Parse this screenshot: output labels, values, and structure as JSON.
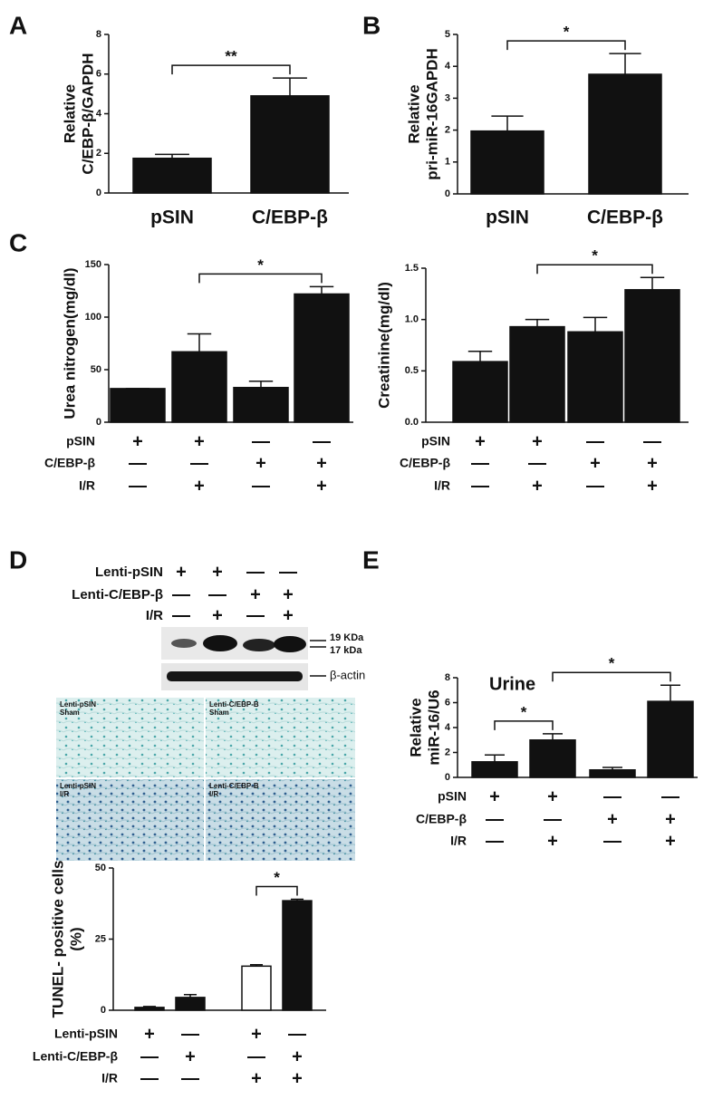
{
  "chart_data": [
    {
      "type": "bar",
      "panel": "A",
      "ylabel": [
        "Relative",
        "C/EBP-β/GAPDH"
      ],
      "categories": [
        "pSIN",
        "C/EBP-β"
      ],
      "values": [
        1.75,
        4.9
      ],
      "errors": [
        0.2,
        0.9
      ],
      "color": "#111111",
      "ylim": [
        0,
        8
      ],
      "yticks": [
        0,
        2,
        4,
        6,
        8
      ],
      "significance": [
        {
          "between": [
            0,
            1
          ],
          "label": "**"
        }
      ]
    },
    {
      "type": "bar",
      "panel": "B",
      "ylabel": [
        "Relative",
        "pri-miR-16GAPDH"
      ],
      "categories": [
        "pSIN",
        "C/EBP-β"
      ],
      "values": [
        1.97,
        3.75
      ],
      "errors": [
        0.47,
        0.65
      ],
      "color": "#111111",
      "ylim": [
        0,
        5
      ],
      "yticks": [
        0,
        1,
        2,
        3,
        4,
        5
      ],
      "significance": [
        {
          "between": [
            0,
            1
          ],
          "label": "*"
        }
      ]
    },
    {
      "type": "bar",
      "panel": "C",
      "ylabel": [
        "Urea nitrogen(mg/dl)"
      ],
      "values": [
        32,
        67,
        33,
        122
      ],
      "errors": [
        0,
        17,
        6,
        7
      ],
      "color": "#111111",
      "ylim": [
        0,
        150
      ],
      "yticks": [
        0,
        50,
        100,
        150
      ],
      "significance": [
        {
          "between": [
            1,
            3
          ],
          "label": "*"
        }
      ],
      "conditions": [
        {
          "label": "pSIN",
          "marks": [
            "+",
            "+",
            "—",
            "—"
          ]
        },
        {
          "label": "C/EBP-β",
          "marks": [
            "—",
            "—",
            "+",
            "+"
          ]
        },
        {
          "label": "I/R",
          "marks": [
            "—",
            "+",
            "—",
            "+"
          ]
        }
      ]
    },
    {
      "type": "bar",
      "ylabel": [
        "Creatinine(mg/dl)"
      ],
      "values": [
        0.59,
        0.93,
        0.88,
        1.29
      ],
      "errors": [
        0.1,
        0.07,
        0.14,
        0.12
      ],
      "color": "#111111",
      "ylim": [
        0,
        1.5
      ],
      "yticks": [
        {
          "value": 0,
          "label": "0.0"
        },
        0.5,
        {
          "value": 1,
          "label": "1.0"
        },
        1.5
      ],
      "significance": [
        {
          "between": [
            1,
            3
          ],
          "label": "*"
        }
      ],
      "conditions": [
        {
          "label": "pSIN",
          "marks": [
            "+",
            "+",
            "—",
            "—"
          ]
        },
        {
          "label": "C/EBP-β",
          "marks": [
            "—",
            "—",
            "+",
            "+"
          ]
        },
        {
          "label": "I/R",
          "marks": [
            "—",
            "+",
            "—",
            "+"
          ]
        }
      ]
    },
    {
      "type": "bar",
      "panel": "D",
      "ylabel": [
        "TUNEL- positive cells",
        "(%)"
      ],
      "values": [
        1,
        4.5,
        15.5,
        38.5
      ],
      "errors": [
        0.3,
        1,
        0.5,
        0.5
      ],
      "colors": [
        "#111111",
        "#111111",
        "#ffffff",
        "#111111"
      ],
      "ylim": [
        0,
        50
      ],
      "yticks": [
        0,
        25,
        50
      ],
      "significance": [
        {
          "between": [
            2,
            3
          ],
          "label": "*"
        }
      ],
      "conditions": [
        {
          "label": "Lenti-pSIN",
          "marks": [
            "+",
            "—",
            "+",
            "—"
          ]
        },
        {
          "label": "Lenti-C/EBP-β",
          "marks": [
            "—",
            "+",
            "—",
            "+"
          ]
        },
        {
          "label": "I/R",
          "marks": [
            "—",
            "—",
            "+",
            "+"
          ]
        }
      ]
    },
    {
      "type": "bar",
      "panel": "E",
      "annotation": "Urine",
      "ylabel": [
        "Relative",
        "miR-16/U6"
      ],
      "values": [
        1.25,
        3.0,
        0.6,
        6.1
      ],
      "errors": [
        0.55,
        0.5,
        0.2,
        1.3
      ],
      "color": "#111111",
      "ylim": [
        0,
        8
      ],
      "yticks": [
        0,
        2,
        4,
        6,
        8
      ],
      "significance": [
        {
          "between": [
            0,
            1
          ],
          "label": "*"
        },
        {
          "between": [
            1,
            3
          ],
          "label": "*"
        }
      ],
      "conditions": [
        {
          "label": "pSIN",
          "marks": [
            "+",
            "+",
            "—",
            "—"
          ]
        },
        {
          "label": "C/EBP-β",
          "marks": [
            "—",
            "—",
            "+",
            "+"
          ]
        },
        {
          "label": "I/R",
          "marks": [
            "—",
            "+",
            "—",
            "+"
          ]
        }
      ]
    }
  ],
  "blot": {
    "rows": [
      {
        "label": "Lenti-pSIN",
        "marks": [
          "+",
          "+",
          "—",
          "—"
        ]
      },
      {
        "label": "Lenti-C/EBP-β",
        "marks": [
          "—",
          "—",
          "+",
          "+"
        ]
      },
      {
        "label": "I/R",
        "marks": [
          "—",
          "+",
          "—",
          "+"
        ]
      }
    ],
    "bands": [
      "19 KDa",
      "17 kDa"
    ],
    "loading": "β-actin"
  },
  "histology": [
    {
      "lines": [
        "Lenti-pSIN",
        "Sham"
      ]
    },
    {
      "lines": [
        "Lenti-C/EBP-B",
        "Sham"
      ]
    },
    {
      "lines": [
        "Lenti-pSIN",
        "I/R"
      ]
    },
    {
      "lines": [
        "Lenti-C/EBP-B",
        "I/R"
      ]
    }
  ]
}
